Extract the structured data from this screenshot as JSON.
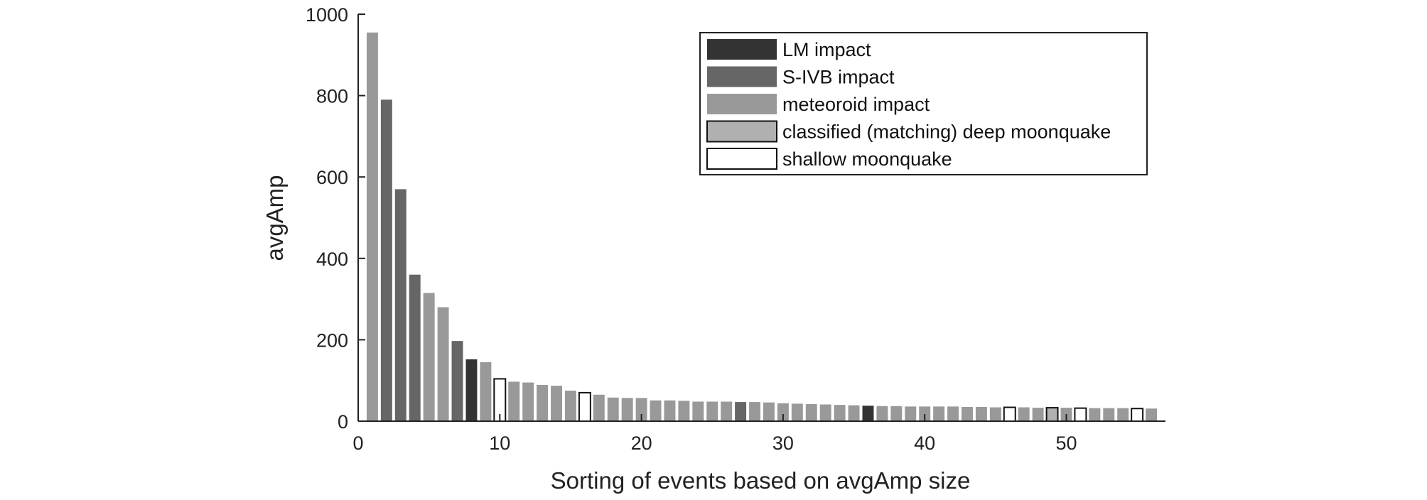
{
  "chart_data": {
    "type": "bar",
    "title": "",
    "xlabel": "Sorting of events based on avgAmp size",
    "ylabel": "avgAmp",
    "xlim": [
      0,
      57
    ],
    "ylim": [
      0,
      1000
    ],
    "xticks": [
      "0",
      "10",
      "20",
      "30",
      "40",
      "50"
    ],
    "yticks": [
      "0",
      "200",
      "400",
      "600",
      "800",
      "1000"
    ],
    "grid": false,
    "legend_position": "top-right",
    "categories": [
      {
        "key": "lm",
        "name": "LM impact",
        "color": "#333333",
        "outline": "#333333"
      },
      {
        "key": "sivb",
        "name": "S-IVB impact",
        "color": "#666666",
        "outline": "#666666"
      },
      {
        "key": "met",
        "name": "meteoroid impact",
        "color": "#999999",
        "outline": "#999999"
      },
      {
        "key": "deep",
        "name": "classified (matching) deep moonquake",
        "color": "#b0b0b0",
        "outline": "#111111"
      },
      {
        "key": "shallow",
        "name": "shallow moonquake",
        "color": "#ffffff",
        "outline": "#111111"
      }
    ],
    "bars": [
      {
        "x": 1,
        "value": 955,
        "category": "met"
      },
      {
        "x": 2,
        "value": 790,
        "category": "sivb"
      },
      {
        "x": 3,
        "value": 570,
        "category": "sivb"
      },
      {
        "x": 4,
        "value": 360,
        "category": "sivb"
      },
      {
        "x": 5,
        "value": 315,
        "category": "met"
      },
      {
        "x": 6,
        "value": 280,
        "category": "met"
      },
      {
        "x": 7,
        "value": 197,
        "category": "sivb"
      },
      {
        "x": 8,
        "value": 152,
        "category": "lm"
      },
      {
        "x": 9,
        "value": 145,
        "category": "met"
      },
      {
        "x": 10,
        "value": 104,
        "category": "shallow"
      },
      {
        "x": 11,
        "value": 97,
        "category": "met"
      },
      {
        "x": 12,
        "value": 95,
        "category": "met"
      },
      {
        "x": 13,
        "value": 89,
        "category": "met"
      },
      {
        "x": 14,
        "value": 87,
        "category": "met"
      },
      {
        "x": 15,
        "value": 75,
        "category": "met"
      },
      {
        "x": 16,
        "value": 70,
        "category": "shallow"
      },
      {
        "x": 17,
        "value": 65,
        "category": "met"
      },
      {
        "x": 18,
        "value": 58,
        "category": "met"
      },
      {
        "x": 19,
        "value": 57,
        "category": "met"
      },
      {
        "x": 20,
        "value": 57,
        "category": "met"
      },
      {
        "x": 21,
        "value": 51,
        "category": "met"
      },
      {
        "x": 22,
        "value": 51,
        "category": "met"
      },
      {
        "x": 23,
        "value": 50,
        "category": "met"
      },
      {
        "x": 24,
        "value": 48,
        "category": "met"
      },
      {
        "x": 25,
        "value": 48,
        "category": "met"
      },
      {
        "x": 26,
        "value": 48,
        "category": "met"
      },
      {
        "x": 27,
        "value": 47,
        "category": "sivb"
      },
      {
        "x": 28,
        "value": 47,
        "category": "met"
      },
      {
        "x": 29,
        "value": 46,
        "category": "met"
      },
      {
        "x": 30,
        "value": 44,
        "category": "met"
      },
      {
        "x": 31,
        "value": 43,
        "category": "met"
      },
      {
        "x": 32,
        "value": 42,
        "category": "met"
      },
      {
        "x": 33,
        "value": 41,
        "category": "met"
      },
      {
        "x": 34,
        "value": 40,
        "category": "met"
      },
      {
        "x": 35,
        "value": 39,
        "category": "met"
      },
      {
        "x": 36,
        "value": 38,
        "category": "lm"
      },
      {
        "x": 37,
        "value": 37,
        "category": "met"
      },
      {
        "x": 38,
        "value": 37,
        "category": "met"
      },
      {
        "x": 39,
        "value": 36,
        "category": "met"
      },
      {
        "x": 40,
        "value": 36,
        "category": "met"
      },
      {
        "x": 41,
        "value": 36,
        "category": "met"
      },
      {
        "x": 42,
        "value": 36,
        "category": "met"
      },
      {
        "x": 43,
        "value": 35,
        "category": "met"
      },
      {
        "x": 44,
        "value": 35,
        "category": "met"
      },
      {
        "x": 45,
        "value": 34,
        "category": "met"
      },
      {
        "x": 46,
        "value": 34,
        "category": "shallow"
      },
      {
        "x": 47,
        "value": 34,
        "category": "met"
      },
      {
        "x": 48,
        "value": 33,
        "category": "met"
      },
      {
        "x": 49,
        "value": 33,
        "category": "deep"
      },
      {
        "x": 50,
        "value": 33,
        "category": "met"
      },
      {
        "x": 51,
        "value": 32,
        "category": "shallow"
      },
      {
        "x": 52,
        "value": 32,
        "category": "met"
      },
      {
        "x": 53,
        "value": 32,
        "category": "met"
      },
      {
        "x": 54,
        "value": 32,
        "category": "met"
      },
      {
        "x": 55,
        "value": 31,
        "category": "shallow"
      },
      {
        "x": 56,
        "value": 31,
        "category": "met"
      }
    ]
  }
}
